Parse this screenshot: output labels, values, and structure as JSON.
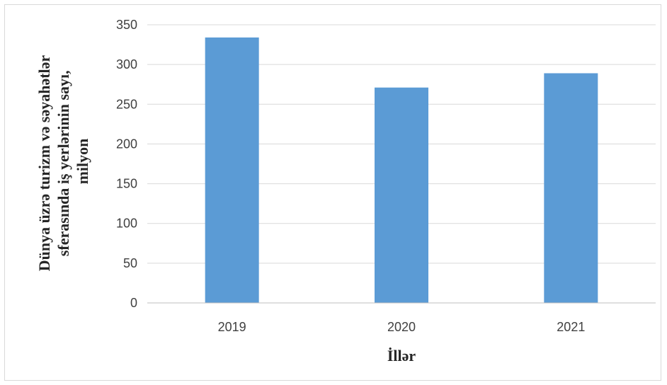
{
  "chart_data": {
    "type": "bar",
    "title": "",
    "xlabel": "İllər",
    "ylabel": [
      "Dünya üzrə turizm və səyahətlər",
      "sferasında iş yerlərinin sayı,",
      "milyon"
    ],
    "categories": [
      "2019",
      "2020",
      "2021"
    ],
    "series": [
      {
        "values": [
          334,
          271,
          289
        ]
      }
    ],
    "ylim": [
      0,
      350
    ],
    "yticks": [
      "0",
      "50",
      "100",
      "150",
      "200",
      "250",
      "300",
      "350"
    ],
    "grid": true,
    "legend": "none",
    "bar_color": "#5b9bd5",
    "grid_color": "#d9d9d9",
    "axis_color": "#bfbfbf"
  }
}
